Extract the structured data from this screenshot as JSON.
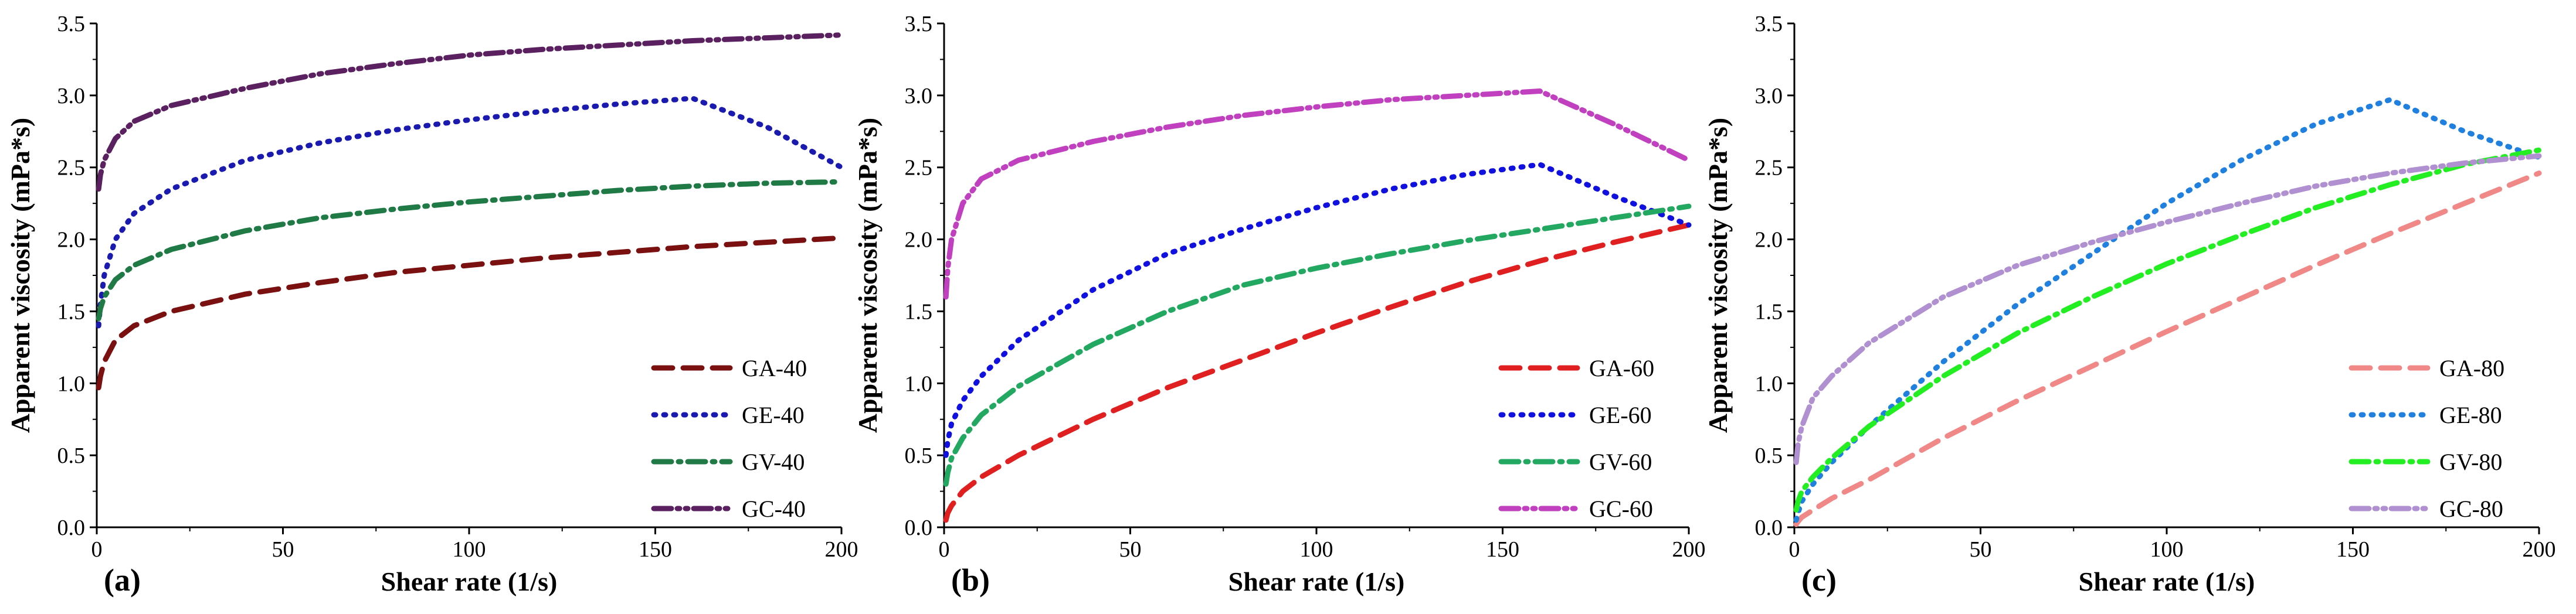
{
  "chart_data": [
    {
      "type": "line",
      "panel_label": "(a)",
      "xlabel": "Shear rate (1/s)",
      "ylabel": "Apparent viscosity (mPa*s)",
      "xlim": [
        0,
        200
      ],
      "ylim": [
        0,
        3.5
      ],
      "xticks": [
        "0",
        "50",
        "100",
        "150",
        "200"
      ],
      "yticks": [
        "0.0",
        "0.5",
        "1.0",
        "1.5",
        "2.0",
        "2.5",
        "3.0",
        "3.5"
      ],
      "legend_position": "bottom-right",
      "series": [
        {
          "name": "GA-40",
          "color": "#7a1010",
          "dash": "dash",
          "x": [
            0.5,
            1,
            2,
            5,
            10,
            20,
            40,
            60,
            80,
            100,
            120,
            140,
            160,
            180,
            200
          ],
          "y": [
            0.97,
            1.05,
            1.15,
            1.3,
            1.4,
            1.5,
            1.62,
            1.7,
            1.77,
            1.82,
            1.87,
            1.91,
            1.95,
            1.98,
            2.01
          ]
        },
        {
          "name": "GE-40",
          "color": "#1a1ab0",
          "dash": "dot",
          "x": [
            0.5,
            1,
            2,
            5,
            10,
            20,
            40,
            60,
            80,
            100,
            120,
            140,
            160,
            180,
            200
          ],
          "y": [
            1.4,
            1.55,
            1.75,
            2.0,
            2.18,
            2.35,
            2.55,
            2.67,
            2.76,
            2.83,
            2.89,
            2.94,
            2.98,
            2.78,
            2.5
          ]
        },
        {
          "name": "GV-40",
          "color": "#1f7a45",
          "dash": "dashdot",
          "x": [
            0.5,
            1,
            2,
            5,
            10,
            20,
            40,
            60,
            80,
            100,
            120,
            140,
            160,
            180,
            200
          ],
          "y": [
            1.45,
            1.52,
            1.6,
            1.72,
            1.82,
            1.93,
            2.06,
            2.15,
            2.21,
            2.26,
            2.3,
            2.34,
            2.37,
            2.39,
            2.4
          ]
        },
        {
          "name": "GC-40",
          "color": "#5a2060",
          "dash": "dashdotdot",
          "x": [
            0.5,
            1,
            2,
            5,
            10,
            20,
            40,
            60,
            80,
            100,
            120,
            140,
            160,
            180,
            200
          ],
          "y": [
            2.35,
            2.45,
            2.55,
            2.7,
            2.82,
            2.93,
            3.05,
            3.15,
            3.22,
            3.28,
            3.32,
            3.35,
            3.38,
            3.4,
            3.42
          ]
        }
      ]
    },
    {
      "type": "line",
      "panel_label": "(b)",
      "xlabel": "Shear rate (1/s)",
      "ylabel": "Apparent viscosity (mPa*s)",
      "xlim": [
        0,
        200
      ],
      "ylim": [
        0,
        3.5
      ],
      "xticks": [
        "0",
        "50",
        "100",
        "150",
        "200"
      ],
      "yticks": [
        "0.0",
        "0.5",
        "1.0",
        "1.5",
        "2.0",
        "2.5",
        "3.0",
        "3.5"
      ],
      "legend_position": "bottom-right",
      "series": [
        {
          "name": "GA-60",
          "color": "#e02020",
          "dash": "dash",
          "x": [
            0.5,
            1,
            2,
            5,
            10,
            20,
            40,
            60,
            80,
            100,
            120,
            140,
            160,
            180,
            200
          ],
          "y": [
            0.05,
            0.1,
            0.15,
            0.25,
            0.35,
            0.5,
            0.75,
            0.97,
            1.16,
            1.35,
            1.53,
            1.7,
            1.85,
            1.98,
            2.1
          ]
        },
        {
          "name": "GE-60",
          "color": "#1010e0",
          "dash": "dot",
          "x": [
            0.5,
            1,
            2,
            5,
            10,
            20,
            40,
            60,
            80,
            100,
            120,
            140,
            160,
            180,
            200
          ],
          "y": [
            0.5,
            0.6,
            0.72,
            0.88,
            1.05,
            1.3,
            1.65,
            1.9,
            2.07,
            2.22,
            2.35,
            2.45,
            2.52,
            2.3,
            2.1
          ]
        },
        {
          "name": "GV-60",
          "color": "#22a860",
          "dash": "dashdot",
          "x": [
            0.5,
            1,
            2,
            5,
            10,
            20,
            40,
            60,
            80,
            100,
            120,
            140,
            160,
            180,
            200
          ],
          "y": [
            0.3,
            0.38,
            0.48,
            0.62,
            0.78,
            0.98,
            1.27,
            1.5,
            1.68,
            1.8,
            1.9,
            1.99,
            2.07,
            2.15,
            2.23
          ]
        },
        {
          "name": "GC-60",
          "color": "#c040c0",
          "dash": "dashdotdot",
          "x": [
            0.5,
            1,
            2,
            5,
            10,
            20,
            40,
            60,
            80,
            100,
            120,
            140,
            160,
            180,
            200
          ],
          "y": [
            1.6,
            1.8,
            2.0,
            2.25,
            2.42,
            2.55,
            2.68,
            2.78,
            2.86,
            2.92,
            2.97,
            3.0,
            3.03,
            2.8,
            2.55
          ]
        }
      ]
    },
    {
      "type": "line",
      "panel_label": "(c)",
      "xlabel": "Shear rate (1/s)",
      "ylabel": "Apparent viscosity (mPa*s)",
      "xlim": [
        0,
        200
      ],
      "ylim": [
        0,
        3.5
      ],
      "xticks": [
        "0",
        "50",
        "100",
        "150",
        "200"
      ],
      "yticks": [
        "0.0",
        "0.5",
        "1.0",
        "1.5",
        "2.0",
        "2.5",
        "3.0",
        "3.5"
      ],
      "legend_position": "bottom-right",
      "series": [
        {
          "name": "GA-80",
          "color": "#f08888",
          "dash": "dash",
          "x": [
            0.5,
            1,
            2,
            5,
            10,
            20,
            40,
            60,
            80,
            100,
            120,
            140,
            160,
            180,
            200
          ],
          "y": [
            0.02,
            0.04,
            0.07,
            0.12,
            0.2,
            0.33,
            0.62,
            0.88,
            1.12,
            1.36,
            1.59,
            1.82,
            2.04,
            2.25,
            2.46
          ]
        },
        {
          "name": "GE-80",
          "color": "#2080e0",
          "dash": "dot",
          "x": [
            0.5,
            1,
            2,
            5,
            10,
            20,
            40,
            60,
            80,
            100,
            120,
            140,
            160,
            180,
            200
          ],
          "y": [
            0.05,
            0.1,
            0.18,
            0.3,
            0.45,
            0.7,
            1.15,
            1.55,
            1.9,
            2.25,
            2.55,
            2.8,
            2.97,
            2.75,
            2.57
          ]
        },
        {
          "name": "GV-80",
          "color": "#22ee22",
          "dash": "dashdot",
          "x": [
            0.5,
            1,
            2,
            5,
            10,
            20,
            40,
            60,
            80,
            100,
            120,
            140,
            160,
            180,
            200
          ],
          "y": [
            0.12,
            0.18,
            0.25,
            0.35,
            0.48,
            0.7,
            1.05,
            1.35,
            1.6,
            1.83,
            2.03,
            2.22,
            2.38,
            2.52,
            2.62
          ]
        },
        {
          "name": "GC-80",
          "color": "#b090d0",
          "dash": "dashdotdot",
          "x": [
            0.5,
            1,
            2,
            5,
            10,
            20,
            40,
            60,
            80,
            100,
            120,
            140,
            160,
            180,
            200
          ],
          "y": [
            0.45,
            0.58,
            0.7,
            0.9,
            1.05,
            1.28,
            1.6,
            1.82,
            1.98,
            2.12,
            2.25,
            2.37,
            2.46,
            2.53,
            2.58
          ]
        }
      ]
    }
  ]
}
